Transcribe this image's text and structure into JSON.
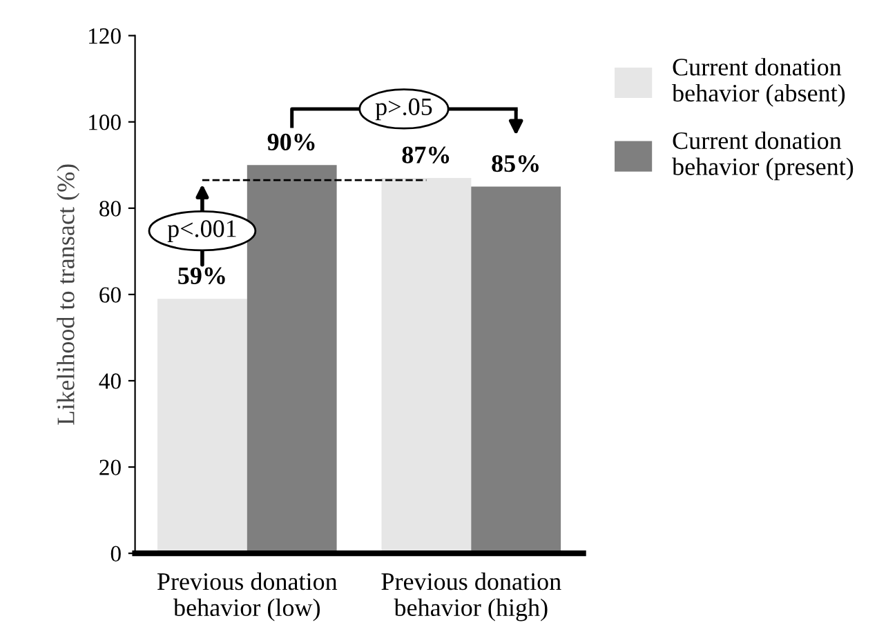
{
  "chart_data": {
    "type": "bar",
    "ylabel": "Likelihood to transact (%)",
    "categories": [
      "Previous donation behavior (low)",
      "Previous donation behavior (high)"
    ],
    "series": [
      {
        "name": "Current donation behavior (absent)",
        "color": "#e6e6e6",
        "values": [
          59,
          87
        ],
        "value_labels": [
          "59%",
          "87%"
        ]
      },
      {
        "name": "Current donation behavior (present)",
        "color": "#7f7f7f",
        "values": [
          90,
          85
        ],
        "value_labels": [
          "90%",
          "85%"
        ]
      }
    ],
    "ylim": [
      0,
      120
    ],
    "yticks": [
      0,
      20,
      40,
      60,
      80,
      100,
      120
    ],
    "annotations": [
      "p<.001",
      "p>.05"
    ],
    "grid": false,
    "legend": "top right"
  }
}
